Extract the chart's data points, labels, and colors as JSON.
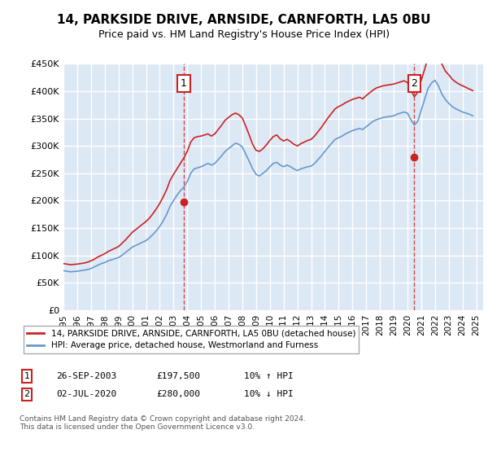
{
  "title": "14, PARKSIDE DRIVE, ARNSIDE, CARNFORTH, LA5 0BU",
  "subtitle": "Price paid vs. HM Land Registry's House Price Index (HPI)",
  "ylabel_ticks": [
    "£0",
    "£50K",
    "£100K",
    "£150K",
    "£200K",
    "£250K",
    "£300K",
    "£350K",
    "£400K",
    "£450K"
  ],
  "ylim": [
    0,
    450000
  ],
  "xlim_start": 1995.0,
  "xlim_end": 2025.5,
  "background_color": "#ffffff",
  "plot_bg_color": "#dde8f5",
  "grid_color": "#ffffff",
  "red_color": "#cc2222",
  "blue_color": "#6699cc",
  "marker1_date": 2003.74,
  "marker2_date": 2020.5,
  "marker1_price": 197500,
  "marker2_price": 280000,
  "legend_label1": "14, PARKSIDE DRIVE, ARNSIDE, CARNFORTH, LA5 0BU (detached house)",
  "legend_label2": "HPI: Average price, detached house, Westmorland and Furness",
  "table_row1": [
    "1",
    "26-SEP-2003",
    "£197,500",
    "10% ↑ HPI"
  ],
  "table_row2": [
    "2",
    "02-JUL-2020",
    "£280,000",
    "10% ↓ HPI"
  ],
  "footer": "Contains HM Land Registry data © Crown copyright and database right 2024.\nThis data is licensed under the Open Government Licence v3.0.",
  "hpi_data_years": [
    1995.0,
    1995.25,
    1995.5,
    1995.75,
    1996.0,
    1996.25,
    1996.5,
    1996.75,
    1997.0,
    1997.25,
    1997.5,
    1997.75,
    1998.0,
    1998.25,
    1998.5,
    1998.75,
    1999.0,
    1999.25,
    1999.5,
    1999.75,
    2000.0,
    2000.25,
    2000.5,
    2000.75,
    2001.0,
    2001.25,
    2001.5,
    2001.75,
    2002.0,
    2002.25,
    2002.5,
    2002.75,
    2003.0,
    2003.25,
    2003.5,
    2003.75,
    2004.0,
    2004.25,
    2004.5,
    2004.75,
    2005.0,
    2005.25,
    2005.5,
    2005.75,
    2006.0,
    2006.25,
    2006.5,
    2006.75,
    2007.0,
    2007.25,
    2007.5,
    2007.75,
    2008.0,
    2008.25,
    2008.5,
    2008.75,
    2009.0,
    2009.25,
    2009.5,
    2009.75,
    2010.0,
    2010.25,
    2010.5,
    2010.75,
    2011.0,
    2011.25,
    2011.5,
    2011.75,
    2012.0,
    2012.25,
    2012.5,
    2012.75,
    2013.0,
    2013.25,
    2013.5,
    2013.75,
    2014.0,
    2014.25,
    2014.5,
    2014.75,
    2015.0,
    2015.25,
    2015.5,
    2015.75,
    2016.0,
    2016.25,
    2016.5,
    2016.75,
    2017.0,
    2017.25,
    2017.5,
    2017.75,
    2018.0,
    2018.25,
    2018.5,
    2018.75,
    2019.0,
    2019.25,
    2019.5,
    2019.75,
    2020.0,
    2020.25,
    2020.5,
    2020.75,
    2021.0,
    2021.25,
    2021.5,
    2021.75,
    2022.0,
    2022.25,
    2022.5,
    2022.75,
    2023.0,
    2023.25,
    2023.5,
    2023.75,
    2024.0,
    2024.25,
    2024.5,
    2024.75
  ],
  "hpi_values": [
    72000,
    71000,
    70000,
    70500,
    71000,
    72000,
    73000,
    74000,
    76000,
    79000,
    82000,
    85000,
    87000,
    90000,
    92000,
    94000,
    96000,
    100000,
    105000,
    110000,
    115000,
    118000,
    121000,
    124000,
    127000,
    132000,
    138000,
    145000,
    153000,
    163000,
    175000,
    190000,
    200000,
    210000,
    218000,
    225000,
    235000,
    250000,
    258000,
    260000,
    262000,
    265000,
    268000,
    265000,
    268000,
    275000,
    282000,
    290000,
    295000,
    300000,
    305000,
    303000,
    298000,
    285000,
    272000,
    258000,
    248000,
    245000,
    250000,
    255000,
    262000,
    268000,
    270000,
    265000,
    262000,
    265000,
    262000,
    258000,
    255000,
    258000,
    260000,
    262000,
    263000,
    268000,
    275000,
    282000,
    290000,
    298000,
    305000,
    312000,
    315000,
    318000,
    322000,
    325000,
    328000,
    330000,
    332000,
    330000,
    335000,
    340000,
    345000,
    348000,
    350000,
    352000,
    353000,
    354000,
    355000,
    358000,
    360000,
    362000,
    360000,
    348000,
    338000,
    345000,
    365000,
    385000,
    405000,
    415000,
    420000,
    410000,
    395000,
    385000,
    378000,
    372000,
    368000,
    365000,
    362000,
    360000,
    358000,
    355000
  ],
  "red_data_years": [
    1995.0,
    1995.25,
    1995.5,
    1995.75,
    1996.0,
    1996.25,
    1996.5,
    1996.75,
    1997.0,
    1997.25,
    1997.5,
    1997.75,
    1998.0,
    1998.25,
    1998.5,
    1998.75,
    1999.0,
    1999.25,
    1999.5,
    1999.75,
    2000.0,
    2000.25,
    2000.5,
    2000.75,
    2001.0,
    2001.25,
    2001.5,
    2001.75,
    2002.0,
    2002.25,
    2002.5,
    2002.75,
    2003.0,
    2003.25,
    2003.5,
    2003.75,
    2004.0,
    2004.25,
    2004.5,
    2004.75,
    2005.0,
    2005.25,
    2005.5,
    2005.75,
    2006.0,
    2006.25,
    2006.5,
    2006.75,
    2007.0,
    2007.25,
    2007.5,
    2007.75,
    2008.0,
    2008.25,
    2008.5,
    2008.75,
    2009.0,
    2009.25,
    2009.5,
    2009.75,
    2010.0,
    2010.25,
    2010.5,
    2010.75,
    2011.0,
    2011.25,
    2011.5,
    2011.75,
    2012.0,
    2012.25,
    2012.5,
    2012.75,
    2013.0,
    2013.25,
    2013.5,
    2013.75,
    2014.0,
    2014.25,
    2014.5,
    2014.75,
    2015.0,
    2015.25,
    2015.5,
    2015.75,
    2016.0,
    2016.25,
    2016.5,
    2016.75,
    2017.0,
    2017.25,
    2017.5,
    2017.75,
    2018.0,
    2018.25,
    2018.5,
    2018.75,
    2019.0,
    2019.25,
    2019.5,
    2019.75,
    2020.0,
    2020.25,
    2020.5,
    2020.75,
    2021.0,
    2021.25,
    2021.5,
    2021.75,
    2022.0,
    2022.25,
    2022.5,
    2022.75,
    2023.0,
    2023.25,
    2023.5,
    2023.75,
    2024.0,
    2024.25,
    2024.5,
    2024.75
  ],
  "red_values": [
    85000,
    84000,
    83000,
    83500,
    84000,
    85000,
    86000,
    87500,
    90000,
    93000,
    97000,
    100000,
    103000,
    107000,
    110000,
    113000,
    116000,
    122000,
    128000,
    135000,
    142000,
    147000,
    152000,
    157000,
    162000,
    168000,
    176000,
    185000,
    195000,
    207000,
    220000,
    237000,
    248000,
    258000,
    268000,
    278000,
    290000,
    307000,
    315000,
    317000,
    318000,
    320000,
    322000,
    318000,
    322000,
    330000,
    338000,
    347000,
    352000,
    357000,
    360000,
    357000,
    351000,
    336000,
    320000,
    303000,
    292000,
    290000,
    295000,
    302000,
    310000,
    317000,
    320000,
    313000,
    309000,
    312000,
    308000,
    303000,
    300000,
    304000,
    307000,
    310000,
    312000,
    318000,
    326000,
    334000,
    343000,
    352000,
    360000,
    368000,
    372000,
    375000,
    379000,
    382000,
    385000,
    387000,
    389000,
    386000,
    392000,
    397000,
    402000,
    406000,
    408000,
    410000,
    411000,
    412000,
    413000,
    415000,
    417000,
    419000,
    416000,
    402000,
    390000,
    398000,
    420000,
    440000,
    462000,
    473000,
    478000,
    466000,
    450000,
    437000,
    430000,
    422000,
    417000,
    413000,
    410000,
    407000,
    404000,
    401000
  ],
  "x_tick_years": [
    1995,
    1996,
    1997,
    1998,
    1999,
    2000,
    2001,
    2002,
    2003,
    2004,
    2005,
    2006,
    2007,
    2008,
    2009,
    2010,
    2011,
    2012,
    2013,
    2014,
    2015,
    2016,
    2017,
    2018,
    2019,
    2020,
    2021,
    2022,
    2023,
    2024,
    2025
  ]
}
